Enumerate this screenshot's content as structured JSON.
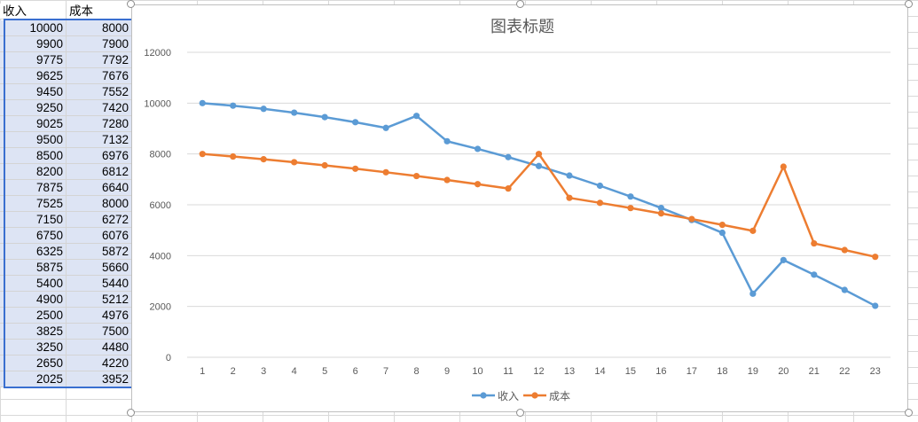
{
  "sheet": {
    "headers": [
      "收入",
      "成本"
    ],
    "rows": [
      [
        "10000",
        "8000"
      ],
      [
        "9900",
        "7900"
      ],
      [
        "9775",
        "7792"
      ],
      [
        "9625",
        "7676"
      ],
      [
        "9450",
        "7552"
      ],
      [
        "9250",
        "7420"
      ],
      [
        "9025",
        "7280"
      ],
      [
        "9500",
        "7132"
      ],
      [
        "8500",
        "6976"
      ],
      [
        "8200",
        "6812"
      ],
      [
        "7875",
        "6640"
      ],
      [
        "7525",
        "8000"
      ],
      [
        "7150",
        "6272"
      ],
      [
        "6750",
        "6076"
      ],
      [
        "6325",
        "5872"
      ],
      [
        "5875",
        "5660"
      ],
      [
        "5400",
        "5440"
      ],
      [
        "4900",
        "5212"
      ],
      [
        "2500",
        "4976"
      ],
      [
        "3825",
        "7500"
      ],
      [
        "3250",
        "4480"
      ],
      [
        "2650",
        "4220"
      ],
      [
        "2025",
        "3952"
      ]
    ]
  },
  "chart_data": {
    "type": "line",
    "title": "图表标题",
    "x": [
      "1",
      "2",
      "3",
      "4",
      "5",
      "6",
      "7",
      "8",
      "9",
      "10",
      "11",
      "12",
      "13",
      "14",
      "15",
      "16",
      "17",
      "18",
      "19",
      "20",
      "21",
      "22",
      "23"
    ],
    "ylim": [
      0,
      12000
    ],
    "yticks": [
      0,
      2000,
      4000,
      6000,
      8000,
      10000,
      12000
    ],
    "grid": true,
    "legend_position": "bottom",
    "series": [
      {
        "name": "收入",
        "color": "#5b9bd5",
        "values": [
          10000,
          9900,
          9775,
          9625,
          9450,
          9250,
          9025,
          9500,
          8500,
          8200,
          7875,
          7525,
          7150,
          6750,
          6325,
          5875,
          5400,
          4900,
          2500,
          3825,
          3250,
          2650,
          2025
        ]
      },
      {
        "name": "成本",
        "color": "#ed7d31",
        "values": [
          8000,
          7900,
          7792,
          7676,
          7552,
          7420,
          7280,
          7132,
          6976,
          6812,
          6640,
          8000,
          6272,
          6076,
          5872,
          5660,
          5440,
          5212,
          4976,
          7500,
          4480,
          4220,
          3952
        ]
      }
    ]
  }
}
